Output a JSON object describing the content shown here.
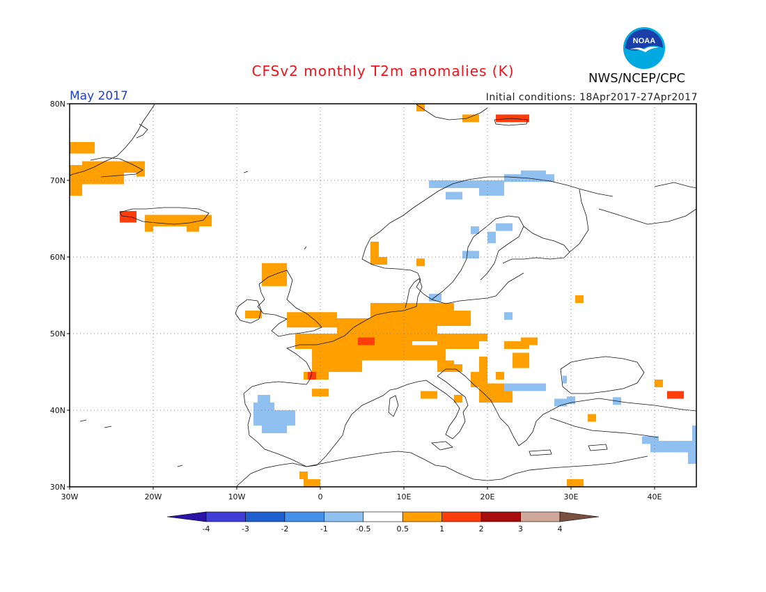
{
  "header": {
    "title": "CFSv2 monthly T2m anomalies (K)",
    "month_label": "May 2017",
    "initial_conditions": "Initial conditions: 18Apr2017-27Apr2017",
    "agency": "NWS/NCEP/CPC",
    "logo_text": "NOAA",
    "logo_colors": {
      "outer": "#00a9e0",
      "inner": "#1a3fa8",
      "gull": "#ffffff"
    }
  },
  "map": {
    "lon_range": [
      -30,
      45
    ],
    "lat_range": [
      30,
      80
    ],
    "lat_labels": [
      "80N",
      "70N",
      "60N",
      "50N",
      "40N",
      "30N"
    ],
    "lon_labels": [
      "30W",
      "20W",
      "10W",
      "0",
      "10E",
      "20E",
      "30E",
      "40E"
    ],
    "anomaly_cells": [
      {
        "lon": -30,
        "lat": 73.5,
        "w": 3,
        "h": 1.5,
        "bin": 1
      },
      {
        "lon": -30,
        "lat": 68,
        "w": 1.5,
        "h": 4,
        "bin": 1
      },
      {
        "lon": -28.5,
        "lat": 69.5,
        "w": 5,
        "h": 3,
        "bin": 1
      },
      {
        "lon": -24,
        "lat": 71,
        "w": 3,
        "h": 1.5,
        "bin": 1
      },
      {
        "lon": -22,
        "lat": 70.5,
        "w": 1,
        "h": 1,
        "bin": 1
      },
      {
        "lon": -24,
        "lat": 64.5,
        "w": 2,
        "h": 1.5,
        "bin": 2
      },
      {
        "lon": -21,
        "lat": 64,
        "w": 8,
        "h": 1.5,
        "bin": 1
      },
      {
        "lon": -21,
        "lat": 63.3,
        "w": 1,
        "h": 1,
        "bin": 1
      },
      {
        "lon": -16,
        "lat": 63.3,
        "w": 1.5,
        "h": 1,
        "bin": 1
      },
      {
        "lon": -7,
        "lat": 56.2,
        "w": 3,
        "h": 3,
        "bin": 1
      },
      {
        "lon": -9,
        "lat": 52,
        "w": 2,
        "h": 1,
        "bin": 1
      },
      {
        "lon": -4,
        "lat": 50.8,
        "w": 6,
        "h": 2,
        "bin": 1
      },
      {
        "lon": 6,
        "lat": 59,
        "w": 2,
        "h": 1,
        "bin": 1
      },
      {
        "lon": 11.5,
        "lat": 58.8,
        "w": 1,
        "h": 1,
        "bin": 1
      },
      {
        "lon": 6,
        "lat": 60,
        "w": 1,
        "h": 2,
        "bin": 1
      },
      {
        "lon": 2,
        "lat": 49,
        "w": 12,
        "h": 3,
        "bin": 1
      },
      {
        "lon": 6,
        "lat": 51,
        "w": 10,
        "h": 3,
        "bin": 1
      },
      {
        "lon": 15,
        "lat": 51,
        "w": 3,
        "h": 2,
        "bin": 1
      },
      {
        "lon": -3,
        "lat": 48,
        "w": 14,
        "h": 2,
        "bin": 1
      },
      {
        "lon": -1,
        "lat": 45,
        "w": 6,
        "h": 3,
        "bin": 1
      },
      {
        "lon": 5,
        "lat": 46.5,
        "w": 10,
        "h": 2,
        "bin": 1
      },
      {
        "lon": -2,
        "lat": 44,
        "w": 3,
        "h": 1,
        "bin": 1
      },
      {
        "lon": 4.5,
        "lat": 48.5,
        "w": 2,
        "h": 1,
        "bin": 2
      },
      {
        "lon": -1.5,
        "lat": 44,
        "w": 1,
        "h": 1,
        "bin": 2
      },
      {
        "lon": 14,
        "lat": 48,
        "w": 5,
        "h": 2,
        "bin": 1
      },
      {
        "lon": 17,
        "lat": 49,
        "w": 3,
        "h": 1,
        "bin": 1
      },
      {
        "lon": 22,
        "lat": 48,
        "w": 3,
        "h": 1,
        "bin": 1
      },
      {
        "lon": 24,
        "lat": 48.5,
        "w": 2,
        "h": 1,
        "bin": 1
      },
      {
        "lon": 23,
        "lat": 45.5,
        "w": 2,
        "h": 2,
        "bin": 1
      },
      {
        "lon": 14,
        "lat": 45,
        "w": 2,
        "h": 1.5,
        "bin": 1
      },
      {
        "lon": 16,
        "lat": 45,
        "w": 1,
        "h": 1,
        "bin": 1
      },
      {
        "lon": 19,
        "lat": 45,
        "w": 1,
        "h": 2,
        "bin": 1
      },
      {
        "lon": 18,
        "lat": 43,
        "w": 2,
        "h": 2,
        "bin": 1
      },
      {
        "lon": 19,
        "lat": 41,
        "w": 4,
        "h": 2.5,
        "bin": 1
      },
      {
        "lon": 21,
        "lat": 44,
        "w": 1,
        "h": 1,
        "bin": 1
      },
      {
        "lon": 12,
        "lat": 41.5,
        "w": 2,
        "h": 1,
        "bin": 1
      },
      {
        "lon": 16,
        "lat": 41,
        "w": 1,
        "h": 1,
        "bin": 1
      },
      {
        "lon": -1,
        "lat": 41.8,
        "w": 2,
        "h": 1,
        "bin": 1
      },
      {
        "lon": 30.5,
        "lat": 54,
        "w": 1,
        "h": 1,
        "bin": 1
      },
      {
        "lon": 32,
        "lat": 38.5,
        "w": 1,
        "h": 1,
        "bin": 1
      },
      {
        "lon": 40,
        "lat": 43,
        "w": 1,
        "h": 1,
        "bin": 1
      },
      {
        "lon": -2,
        "lat": 30,
        "w": 2,
        "h": 1,
        "bin": 1
      },
      {
        "lon": -2.5,
        "lat": 31,
        "w": 1,
        "h": 1,
        "bin": 1
      },
      {
        "lon": 29.5,
        "lat": 30,
        "w": 2,
        "h": 1,
        "bin": 1
      },
      {
        "lon": 11.5,
        "lat": 79,
        "w": 1,
        "h": 1,
        "bin": 1
      },
      {
        "lon": 17,
        "lat": 77.6,
        "w": 2,
        "h": 1,
        "bin": 1
      },
      {
        "lon": 21,
        "lat": 77.6,
        "w": 4,
        "h": 1,
        "bin": 2
      },
      {
        "lon": 41.5,
        "lat": 41.5,
        "w": 2,
        "h": 1,
        "bin": 2
      },
      {
        "lon": 13,
        "lat": 69,
        "w": 9,
        "h": 1,
        "bin": -1
      },
      {
        "lon": 19,
        "lat": 68,
        "w": 3,
        "h": 1,
        "bin": -1
      },
      {
        "lon": 15,
        "lat": 67.5,
        "w": 2,
        "h": 1,
        "bin": -1
      },
      {
        "lon": 22,
        "lat": 69.8,
        "w": 6,
        "h": 1,
        "bin": -1
      },
      {
        "lon": 24,
        "lat": 70.3,
        "w": 3,
        "h": 1,
        "bin": -1
      },
      {
        "lon": 18,
        "lat": 63,
        "w": 1,
        "h": 1,
        "bin": -1
      },
      {
        "lon": 21,
        "lat": 63.4,
        "w": 2,
        "h": 1,
        "bin": -1
      },
      {
        "lon": 20,
        "lat": 61.8,
        "w": 1,
        "h": 1.5,
        "bin": -1
      },
      {
        "lon": 17,
        "lat": 59.8,
        "w": 2,
        "h": 1,
        "bin": -1
      },
      {
        "lon": 13,
        "lat": 54.2,
        "w": 1.5,
        "h": 1,
        "bin": -1
      },
      {
        "lon": 22,
        "lat": 51.8,
        "w": 1,
        "h": 1,
        "bin": -1
      },
      {
        "lon": 22,
        "lat": 42.5,
        "w": 5,
        "h": 1,
        "bin": -1
      },
      {
        "lon": 28,
        "lat": 40.5,
        "w": 1.5,
        "h": 1,
        "bin": -1
      },
      {
        "lon": 29.5,
        "lat": 40.8,
        "w": 1,
        "h": 1,
        "bin": -1
      },
      {
        "lon": 35,
        "lat": 40.7,
        "w": 1,
        "h": 1,
        "bin": -1
      },
      {
        "lon": 29,
        "lat": 43.5,
        "w": 0.5,
        "h": 1,
        "bin": -1
      },
      {
        "lon": -8,
        "lat": 38,
        "w": 5,
        "h": 2,
        "bin": -1
      },
      {
        "lon": -7,
        "lat": 37,
        "w": 3,
        "h": 1.5,
        "bin": -1
      },
      {
        "lon": -8,
        "lat": 40,
        "w": 2.5,
        "h": 1,
        "bin": -1
      },
      {
        "lon": -7.5,
        "lat": 41,
        "w": 1.5,
        "h": 1,
        "bin": -1
      },
      {
        "lon": 38.5,
        "lat": 35.6,
        "w": 2,
        "h": 1,
        "bin": -1
      },
      {
        "lon": 39.5,
        "lat": 34.5,
        "w": 5.5,
        "h": 1.5,
        "bin": -1
      },
      {
        "lon": 44,
        "lat": 33,
        "w": 1,
        "h": 3,
        "bin": -1
      },
      {
        "lon": 44.5,
        "lat": 36,
        "w": 0.5,
        "h": 2,
        "bin": -1
      }
    ]
  },
  "colorbar": {
    "colors": [
      "#2b12a8",
      "#3f3fd8",
      "#1f5fd0",
      "#4590e8",
      "#90c0f0",
      "#ffffff",
      "#ff9f00",
      "#ff3d0a",
      "#a80d0d",
      "#cfa89a",
      "#7a5040"
    ],
    "tick_labels": [
      "-4",
      "-3",
      "-2",
      "-1",
      "-0.5",
      "0.5",
      "1",
      "2",
      "3",
      "4"
    ],
    "bin_colors": {
      "-1": "#90c0f0",
      "1": "#ff9f00",
      "2": "#ff3d0a"
    }
  }
}
